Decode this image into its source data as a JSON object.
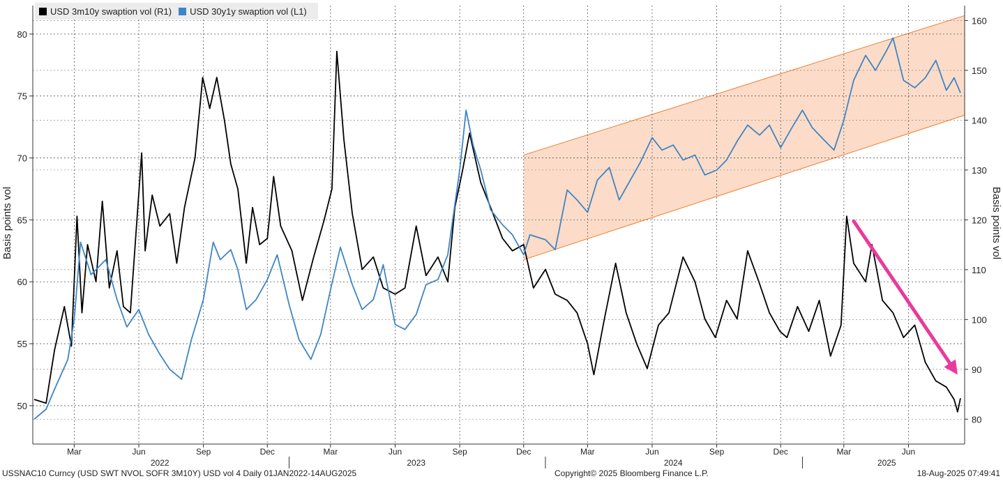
{
  "chart_data": {
    "type": "line",
    "series": [
      {
        "name": "USD 3m10y swaption vol (R1)",
        "axis": "left",
        "color": "#000000",
        "points": [
          [
            "2022-01-03",
            50.5
          ],
          [
            "2022-01-20",
            50.2
          ],
          [
            "2022-02-01",
            54.5
          ],
          [
            "2022-02-15",
            58.0
          ],
          [
            "2022-02-25",
            54.8
          ],
          [
            "2022-03-05",
            65.3
          ],
          [
            "2022-03-12",
            57.5
          ],
          [
            "2022-03-20",
            63.0
          ],
          [
            "2022-04-01",
            60.0
          ],
          [
            "2022-04-10",
            66.5
          ],
          [
            "2022-04-20",
            59.5
          ],
          [
            "2022-05-01",
            62.5
          ],
          [
            "2022-05-10",
            58.0
          ],
          [
            "2022-05-20",
            57.5
          ],
          [
            "2022-06-05",
            70.4
          ],
          [
            "2022-06-10",
            62.5
          ],
          [
            "2022-06-20",
            67.0
          ],
          [
            "2022-07-01",
            64.5
          ],
          [
            "2022-07-15",
            65.5
          ],
          [
            "2022-07-25",
            61.5
          ],
          [
            "2022-08-05",
            66.0
          ],
          [
            "2022-08-20",
            70.0
          ],
          [
            "2022-08-31",
            76.5
          ],
          [
            "2022-09-10",
            74.0
          ],
          [
            "2022-09-20",
            76.5
          ],
          [
            "2022-10-01",
            73.0
          ],
          [
            "2022-10-10",
            69.5
          ],
          [
            "2022-10-20",
            67.5
          ],
          [
            "2022-11-01",
            61.5
          ],
          [
            "2022-11-10",
            66.0
          ],
          [
            "2022-11-20",
            63.0
          ],
          [
            "2022-12-01",
            63.5
          ],
          [
            "2022-12-10",
            68.5
          ],
          [
            "2022-12-20",
            64.5
          ],
          [
            "2023-01-05",
            62.5
          ],
          [
            "2023-01-20",
            58.5
          ],
          [
            "2023-02-05",
            62.0
          ],
          [
            "2023-02-20",
            65.0
          ],
          [
            "2023-03-03",
            67.5
          ],
          [
            "2023-03-10",
            78.6
          ],
          [
            "2023-03-20",
            71.5
          ],
          [
            "2023-04-01",
            65.5
          ],
          [
            "2023-04-15",
            61.0
          ],
          [
            "2023-05-01",
            62.0
          ],
          [
            "2023-05-15",
            59.5
          ],
          [
            "2023-06-01",
            59.0
          ],
          [
            "2023-06-15",
            59.5
          ],
          [
            "2023-07-01",
            64.5
          ],
          [
            "2023-07-15",
            60.5
          ],
          [
            "2023-08-01",
            62.0
          ],
          [
            "2023-08-15",
            60.0
          ],
          [
            "2023-08-25",
            66.0
          ],
          [
            "2023-09-05",
            69.0
          ],
          [
            "2023-09-15",
            72.0
          ],
          [
            "2023-10-01",
            68.0
          ],
          [
            "2023-10-15",
            66.0
          ],
          [
            "2023-11-01",
            63.5
          ],
          [
            "2023-11-15",
            62.5
          ],
          [
            "2023-12-01",
            63.0
          ],
          [
            "2023-12-15",
            59.5
          ],
          [
            "2024-01-01",
            61.0
          ],
          [
            "2024-01-15",
            59.0
          ],
          [
            "2024-02-01",
            58.5
          ],
          [
            "2024-02-15",
            57.5
          ],
          [
            "2024-03-01",
            55.0
          ],
          [
            "2024-03-10",
            52.5
          ],
          [
            "2024-03-25",
            57.0
          ],
          [
            "2024-04-10",
            61.5
          ],
          [
            "2024-04-25",
            57.5
          ],
          [
            "2024-05-10",
            55.0
          ],
          [
            "2024-05-25",
            53.0
          ],
          [
            "2024-06-10",
            56.5
          ],
          [
            "2024-06-25",
            57.5
          ],
          [
            "2024-07-15",
            62.0
          ],
          [
            "2024-08-01",
            60.0
          ],
          [
            "2024-08-15",
            57.0
          ],
          [
            "2024-08-30",
            55.5
          ],
          [
            "2024-09-15",
            58.5
          ],
          [
            "2024-09-30",
            57.0
          ],
          [
            "2024-10-15",
            62.5
          ],
          [
            "2024-10-31",
            60.0
          ],
          [
            "2024-11-15",
            57.5
          ],
          [
            "2024-11-30",
            56.0
          ],
          [
            "2024-12-10",
            55.5
          ],
          [
            "2024-12-25",
            58.0
          ],
          [
            "2025-01-10",
            56.0
          ],
          [
            "2025-01-25",
            58.5
          ],
          [
            "2025-02-10",
            54.0
          ],
          [
            "2025-02-25",
            56.5
          ],
          [
            "2025-03-05",
            65.3
          ],
          [
            "2025-03-15",
            61.5
          ],
          [
            "2025-04-01",
            60.0
          ],
          [
            "2025-04-10",
            63.0
          ],
          [
            "2025-04-25",
            58.5
          ],
          [
            "2025-05-10",
            57.5
          ],
          [
            "2025-05-25",
            55.5
          ],
          [
            "2025-06-10",
            56.5
          ],
          [
            "2025-06-25",
            53.5
          ],
          [
            "2025-07-10",
            52.0
          ],
          [
            "2025-07-25",
            51.5
          ],
          [
            "2025-08-05",
            50.5
          ],
          [
            "2025-08-10",
            49.5
          ],
          [
            "2025-08-14",
            50.6
          ]
        ]
      },
      {
        "name": "USD 30y1y swaption vol (L1)",
        "axis": "right",
        "color": "#3d85c6",
        "points": [
          [
            "2022-01-03",
            80.0
          ],
          [
            "2022-01-20",
            82.0
          ],
          [
            "2022-02-01",
            86.0
          ],
          [
            "2022-02-20",
            92.0
          ],
          [
            "2022-03-01",
            100.0
          ],
          [
            "2022-03-10",
            115.5
          ],
          [
            "2022-03-25",
            109.0
          ],
          [
            "2022-04-15",
            112.0
          ],
          [
            "2022-05-01",
            104.0
          ],
          [
            "2022-05-15",
            98.5
          ],
          [
            "2022-06-01",
            102.0
          ],
          [
            "2022-06-15",
            97.0
          ],
          [
            "2022-07-01",
            93.0
          ],
          [
            "2022-07-15",
            90.0
          ],
          [
            "2022-08-01",
            88.0
          ],
          [
            "2022-08-15",
            96.0
          ],
          [
            "2022-09-01",
            104.0
          ],
          [
            "2022-09-15",
            115.5
          ],
          [
            "2022-09-25",
            112.0
          ],
          [
            "2022-10-10",
            114.0
          ],
          [
            "2022-10-20",
            110.0
          ],
          [
            "2022-11-01",
            102.0
          ],
          [
            "2022-11-15",
            104.0
          ],
          [
            "2022-12-01",
            108.0
          ],
          [
            "2022-12-15",
            113.0
          ],
          [
            "2023-01-01",
            103.0
          ],
          [
            "2023-01-15",
            96.0
          ],
          [
            "2023-02-01",
            92.0
          ],
          [
            "2023-02-15",
            97.0
          ],
          [
            "2023-03-01",
            106.0
          ],
          [
            "2023-03-15",
            114.5
          ],
          [
            "2023-04-01",
            107.0
          ],
          [
            "2023-04-15",
            102.0
          ],
          [
            "2023-05-01",
            104.0
          ],
          [
            "2023-05-15",
            111.0
          ],
          [
            "2023-06-01",
            99.0
          ],
          [
            "2023-06-15",
            98.0
          ],
          [
            "2023-07-01",
            101.0
          ],
          [
            "2023-07-15",
            107.0
          ],
          [
            "2023-08-01",
            108.0
          ],
          [
            "2023-08-15",
            113.0
          ],
          [
            "2023-09-01",
            130.0
          ],
          [
            "2023-09-10",
            142.0
          ],
          [
            "2023-09-20",
            135.0
          ],
          [
            "2023-10-01",
            130.0
          ],
          [
            "2023-10-15",
            122.0
          ],
          [
            "2023-11-01",
            119.0
          ],
          [
            "2023-11-15",
            117.0
          ],
          [
            "2023-12-01",
            113.0
          ],
          [
            "2023-12-10",
            117.0
          ],
          [
            "2024-01-01",
            116.0
          ],
          [
            "2024-01-15",
            114.0
          ],
          [
            "2024-02-01",
            126.0
          ],
          [
            "2024-02-15",
            124.0
          ],
          [
            "2024-03-01",
            121.5
          ],
          [
            "2024-03-15",
            128.0
          ],
          [
            "2024-04-01",
            130.5
          ],
          [
            "2024-04-15",
            124.0
          ],
          [
            "2024-05-01",
            128.0
          ],
          [
            "2024-05-15",
            131.5
          ],
          [
            "2024-06-01",
            136.5
          ],
          [
            "2024-06-15",
            134.0
          ],
          [
            "2024-07-01",
            135.0
          ],
          [
            "2024-07-15",
            132.0
          ],
          [
            "2024-08-01",
            133.0
          ],
          [
            "2024-08-15",
            129.0
          ],
          [
            "2024-09-01",
            130.0
          ],
          [
            "2024-09-15",
            132.0
          ],
          [
            "2024-10-01",
            136.0
          ],
          [
            "2024-10-15",
            139.0
          ],
          [
            "2024-11-01",
            137.0
          ],
          [
            "2024-11-15",
            139.0
          ],
          [
            "2024-12-01",
            134.5
          ],
          [
            "2024-12-15",
            138.0
          ],
          [
            "2025-01-01",
            142.0
          ],
          [
            "2025-01-15",
            138.5
          ],
          [
            "2025-02-01",
            136.0
          ],
          [
            "2025-02-15",
            134.0
          ],
          [
            "2025-03-01",
            140.0
          ],
          [
            "2025-03-15",
            148.0
          ],
          [
            "2025-04-01",
            153.0
          ],
          [
            "2025-04-15",
            150.0
          ],
          [
            "2025-05-01",
            154.0
          ],
          [
            "2025-05-10",
            156.5
          ],
          [
            "2025-05-25",
            148.0
          ],
          [
            "2025-06-10",
            146.5
          ],
          [
            "2025-06-25",
            148.5
          ],
          [
            "2025-07-10",
            152.0
          ],
          [
            "2025-07-25",
            146.0
          ],
          [
            "2025-08-05",
            148.5
          ],
          [
            "2025-08-14",
            145.5
          ]
        ]
      }
    ],
    "y_left": {
      "label": "Basis points vol",
      "lim": [
        46.9,
        82.3
      ],
      "ticks": [
        50,
        55,
        60,
        65,
        70,
        75,
        80
      ]
    },
    "y_right": {
      "label": "Basis points vol",
      "lim": [
        75,
        163
      ],
      "ticks": [
        80,
        90,
        100,
        110,
        120,
        130,
        140,
        150,
        160
      ]
    },
    "x_axis": {
      "range": [
        "2022-01-01",
        "2025-08-20"
      ],
      "month_ticks": [
        {
          "label": "Mar",
          "date": "2022-03-01"
        },
        {
          "label": "Jun",
          "date": "2022-06-01"
        },
        {
          "label": "Sep",
          "date": "2022-09-01"
        },
        {
          "label": "Dec",
          "date": "2022-12-01"
        },
        {
          "label": "Mar",
          "date": "2023-03-01"
        },
        {
          "label": "Jun",
          "date": "2023-06-01"
        },
        {
          "label": "Sep",
          "date": "2023-09-01"
        },
        {
          "label": "Dec",
          "date": "2023-12-01"
        },
        {
          "label": "Mar",
          "date": "2024-03-01"
        },
        {
          "label": "Jun",
          "date": "2024-06-01"
        },
        {
          "label": "Sep",
          "date": "2024-09-01"
        },
        {
          "label": "Dec",
          "date": "2024-12-01"
        },
        {
          "label": "Mar",
          "date": "2025-03-01"
        },
        {
          "label": "Jun",
          "date": "2025-06-01"
        }
      ],
      "year_labels": [
        {
          "label": "2022",
          "date": "2022-07-01"
        },
        {
          "label": "2023",
          "date": "2023-07-01"
        },
        {
          "label": "2024",
          "date": "2024-07-01"
        },
        {
          "label": "2025",
          "date": "2025-05-01"
        }
      ],
      "year_dividers": [
        "2023-01-01",
        "2024-01-01",
        "2025-01-01"
      ]
    },
    "channel": {
      "axis": "right",
      "fill": "#fcdcc8",
      "stroke": "#ee7d31",
      "start_date": "2023-12-01",
      "end_date": "2025-08-20",
      "upper": [
        133,
        161
      ],
      "lower": [
        112,
        141
      ]
    },
    "arrow": {
      "axis": "left",
      "color": "#e93a9c",
      "from": [
        "2025-03-15",
        64.9
      ],
      "to": [
        "2025-08-10",
        52.5
      ]
    },
    "grid": true,
    "legend_position": "top-left"
  },
  "footer": {
    "left": "USSNAC10 Curncy (USD SWT NVOL SOFR 3M10Y) USD vol 4  Daily 01JAN2022-14AUG2025",
    "center": "Copyright© 2025 Bloomberg Finance L.P.",
    "right": "18-Aug-2025 07:49:41"
  }
}
